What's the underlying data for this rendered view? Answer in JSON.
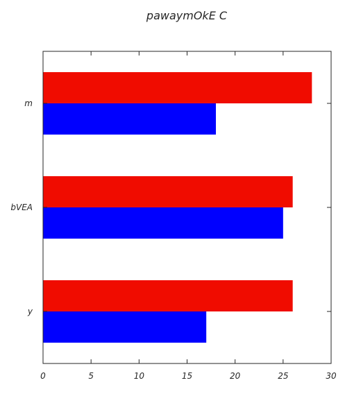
{
  "chart_data": {
    "type": "bar",
    "orientation": "horizontal",
    "title": "pawaymOkE C",
    "xlabel": "",
    "ylabel": "",
    "categories": [
      "m",
      "bVEA",
      "y"
    ],
    "series": [
      {
        "color": "#f00c00",
        "values": [
          28,
          26,
          26
        ]
      },
      {
        "color": "#0000ff",
        "values": [
          18,
          25,
          17
        ]
      }
    ],
    "xlim": [
      0,
      30
    ],
    "xticks": [
      0,
      5,
      10,
      15,
      20,
      25,
      30
    ],
    "grid": false,
    "legend": "none"
  }
}
